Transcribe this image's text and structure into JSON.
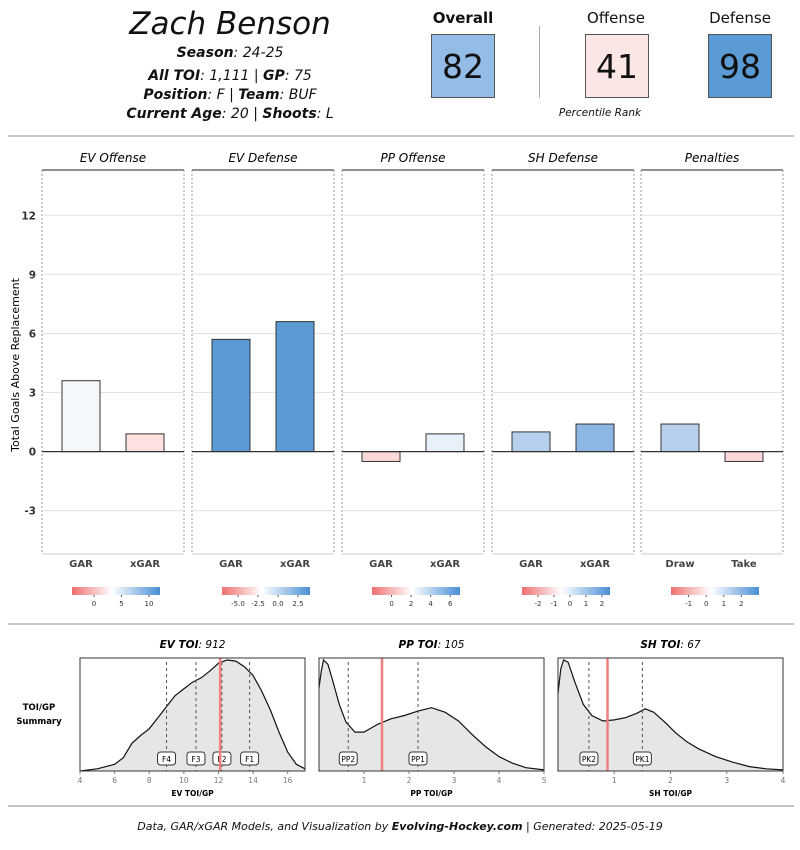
{
  "header": {
    "name": "Zach Benson",
    "season_label": "Season",
    "season_value": ": 24-25",
    "toi_label": "All TOI",
    "toi_value": ": 1,111 | ",
    "gp_label": "GP",
    "gp_value": ": 75",
    "position_label": "Position",
    "position_value": ": F | ",
    "team_label": "Team",
    "team_value": ": BUF",
    "age_label": "Current Age",
    "age_value": ": 20 | ",
    "shoots_label": "Shoots",
    "shoots_value": ": L"
  },
  "ranks": {
    "overall_label": "Overall",
    "overall_value": "82",
    "offense_label": "Offense",
    "offense_value": "41",
    "defense_label": "Defense",
    "defense_value": "98",
    "caption": "Percentile Rank",
    "colors": {
      "overall": "#93bde6",
      "offense": "#fbe6e6",
      "defense": "#5b9bd5"
    }
  },
  "footer": {
    "prefix": "Data, GAR/xGAR Models, and Visualization by ",
    "brand": "Evolving-Hockey.com",
    "suffix": " | Generated: 2025-05-19"
  },
  "chart_data": [
    {
      "type": "bar",
      "ylabel": "Total Goals Above Replacement",
      "ylim": [
        -5.2,
        14.3
      ],
      "yticks": [
        -3,
        0,
        3,
        6,
        9,
        12
      ],
      "grid": true,
      "panels": [
        {
          "title": "EV Offense",
          "categories": [
            "GAR",
            "xGAR"
          ],
          "values": [
            3.6,
            0.9
          ],
          "colors": [
            "#f4f8fd",
            "#fde0e0"
          ],
          "legend": {
            "ticks": [
              "0",
              "5",
              "10"
            ],
            "min": -4,
            "max": 12,
            "tick_values": [
              0,
              5,
              10
            ]
          }
        },
        {
          "title": "EV Defense",
          "categories": [
            "GAR",
            "xGAR"
          ],
          "values": [
            5.7,
            6.6
          ],
          "colors": [
            "#5b9bd5",
            "#5b9bd5"
          ],
          "legend": {
            "ticks": [
              "-5.0",
              "-2.5",
              "0.0",
              "2.5"
            ],
            "min": -7,
            "max": 4,
            "tick_values": [
              -5,
              -2.5,
              0,
              2.5
            ]
          }
        },
        {
          "title": "PP Offense",
          "categories": [
            "GAR",
            "xGAR"
          ],
          "values": [
            -0.5,
            0.9
          ],
          "colors": [
            "#fbd9d9",
            "#e8f0fa"
          ],
          "legend": {
            "ticks": [
              "0",
              "2",
              "4",
              "6"
            ],
            "min": -2,
            "max": 7,
            "tick_values": [
              0,
              2,
              4,
              6
            ]
          }
        },
        {
          "title": "SH Defense",
          "categories": [
            "GAR",
            "xGAR"
          ],
          "values": [
            1.0,
            1.4
          ],
          "colors": [
            "#b5cfec",
            "#8cb6e3"
          ],
          "legend": {
            "ticks": [
              "-2",
              "-1",
              "0",
              "1",
              "2"
            ],
            "min": -3,
            "max": 2.5,
            "tick_values": [
              -2,
              -1,
              0,
              1,
              2
            ]
          }
        },
        {
          "title": "Penalties",
          "categories": [
            "Draw",
            "Take"
          ],
          "values": [
            1.4,
            -0.5
          ],
          "colors": [
            "#b8d0ee",
            "#fbd9d9"
          ],
          "legend": {
            "ticks": [
              "-1",
              "0",
              "1",
              "2"
            ],
            "min": -2,
            "max": 3,
            "tick_values": [
              -1,
              0,
              1,
              2
            ]
          }
        }
      ]
    },
    {
      "type": "area",
      "side_label": [
        "TOI/GP",
        "Summary"
      ],
      "panels": [
        {
          "title_bold": "EV TOI",
          "title_value": ": 912",
          "xlabel": "EV TOI/GP",
          "xlim": [
            4,
            17
          ],
          "xticks": [
            4,
            6,
            8,
            10,
            12,
            14,
            16
          ],
          "density": [
            [
              4,
              0.0
            ],
            [
              5,
              0.02
            ],
            [
              6,
              0.06
            ],
            [
              6.5,
              0.12
            ],
            [
              7,
              0.25
            ],
            [
              7.5,
              0.32
            ],
            [
              8,
              0.38
            ],
            [
              8.5,
              0.48
            ],
            [
              9,
              0.58
            ],
            [
              9.5,
              0.68
            ],
            [
              10,
              0.74
            ],
            [
              10.5,
              0.8
            ],
            [
              11,
              0.84
            ],
            [
              11.5,
              0.9
            ],
            [
              12,
              0.97
            ],
            [
              12.5,
              1.0
            ],
            [
              13,
              0.99
            ],
            [
              13.5,
              0.94
            ],
            [
              14,
              0.86
            ],
            [
              14.5,
              0.72
            ],
            [
              15,
              0.55
            ],
            [
              15.5,
              0.35
            ],
            [
              16,
              0.17
            ],
            [
              16.5,
              0.06
            ],
            [
              17,
              0.02
            ]
          ],
          "markers": [
            {
              "label": "F4",
              "x": 9.0
            },
            {
              "label": "F3",
              "x": 10.7
            },
            {
              "label": "F2",
              "x": 12.2
            },
            {
              "label": "F1",
              "x": 13.8
            }
          ],
          "player_x": 12.1
        },
        {
          "title_bold": "PP TOI",
          "title_value": ": 105",
          "xlabel": "PP TOI/GP",
          "xlim": [
            0,
            5
          ],
          "xticks": [
            1,
            2,
            3,
            4,
            5
          ],
          "density": [
            [
              0,
              0.75
            ],
            [
              0.05,
              0.9
            ],
            [
              0.1,
              1.0
            ],
            [
              0.2,
              0.96
            ],
            [
              0.3,
              0.82
            ],
            [
              0.45,
              0.6
            ],
            [
              0.6,
              0.44
            ],
            [
              0.8,
              0.35
            ],
            [
              1.0,
              0.35
            ],
            [
              1.3,
              0.42
            ],
            [
              1.6,
              0.47
            ],
            [
              1.9,
              0.5
            ],
            [
              2.2,
              0.54
            ],
            [
              2.5,
              0.57
            ],
            [
              2.8,
              0.53
            ],
            [
              3.1,
              0.45
            ],
            [
              3.4,
              0.33
            ],
            [
              3.7,
              0.22
            ],
            [
              4.0,
              0.13
            ],
            [
              4.3,
              0.07
            ],
            [
              4.6,
              0.03
            ],
            [
              5,
              0.01
            ]
          ],
          "markers": [
            {
              "label": "PP2",
              "x": 0.65
            },
            {
              "label": "PP1",
              "x": 2.2
            }
          ],
          "player_x": 1.4
        },
        {
          "title_bold": "SH TOI",
          "title_value": ": 67",
          "xlabel": "SH TOI/GP",
          "xlim": [
            0,
            4
          ],
          "xticks": [
            1,
            2,
            3,
            4
          ],
          "density": [
            [
              0,
              0.7
            ],
            [
              0.05,
              0.92
            ],
            [
              0.1,
              1.0
            ],
            [
              0.18,
              0.98
            ],
            [
              0.3,
              0.8
            ],
            [
              0.45,
              0.6
            ],
            [
              0.6,
              0.5
            ],
            [
              0.8,
              0.45
            ],
            [
              1.0,
              0.46
            ],
            [
              1.2,
              0.48
            ],
            [
              1.4,
              0.52
            ],
            [
              1.55,
              0.56
            ],
            [
              1.7,
              0.53
            ],
            [
              1.9,
              0.44
            ],
            [
              2.1,
              0.34
            ],
            [
              2.3,
              0.26
            ],
            [
              2.5,
              0.2
            ],
            [
              2.8,
              0.13
            ],
            [
              3.1,
              0.08
            ],
            [
              3.4,
              0.04
            ],
            [
              3.7,
              0.02
            ],
            [
              4,
              0.01
            ]
          ],
          "markers": [
            {
              "label": "PK2",
              "x": 0.55
            },
            {
              "label": "PK1",
              "x": 1.5
            }
          ],
          "player_x": 0.88
        }
      ]
    }
  ]
}
